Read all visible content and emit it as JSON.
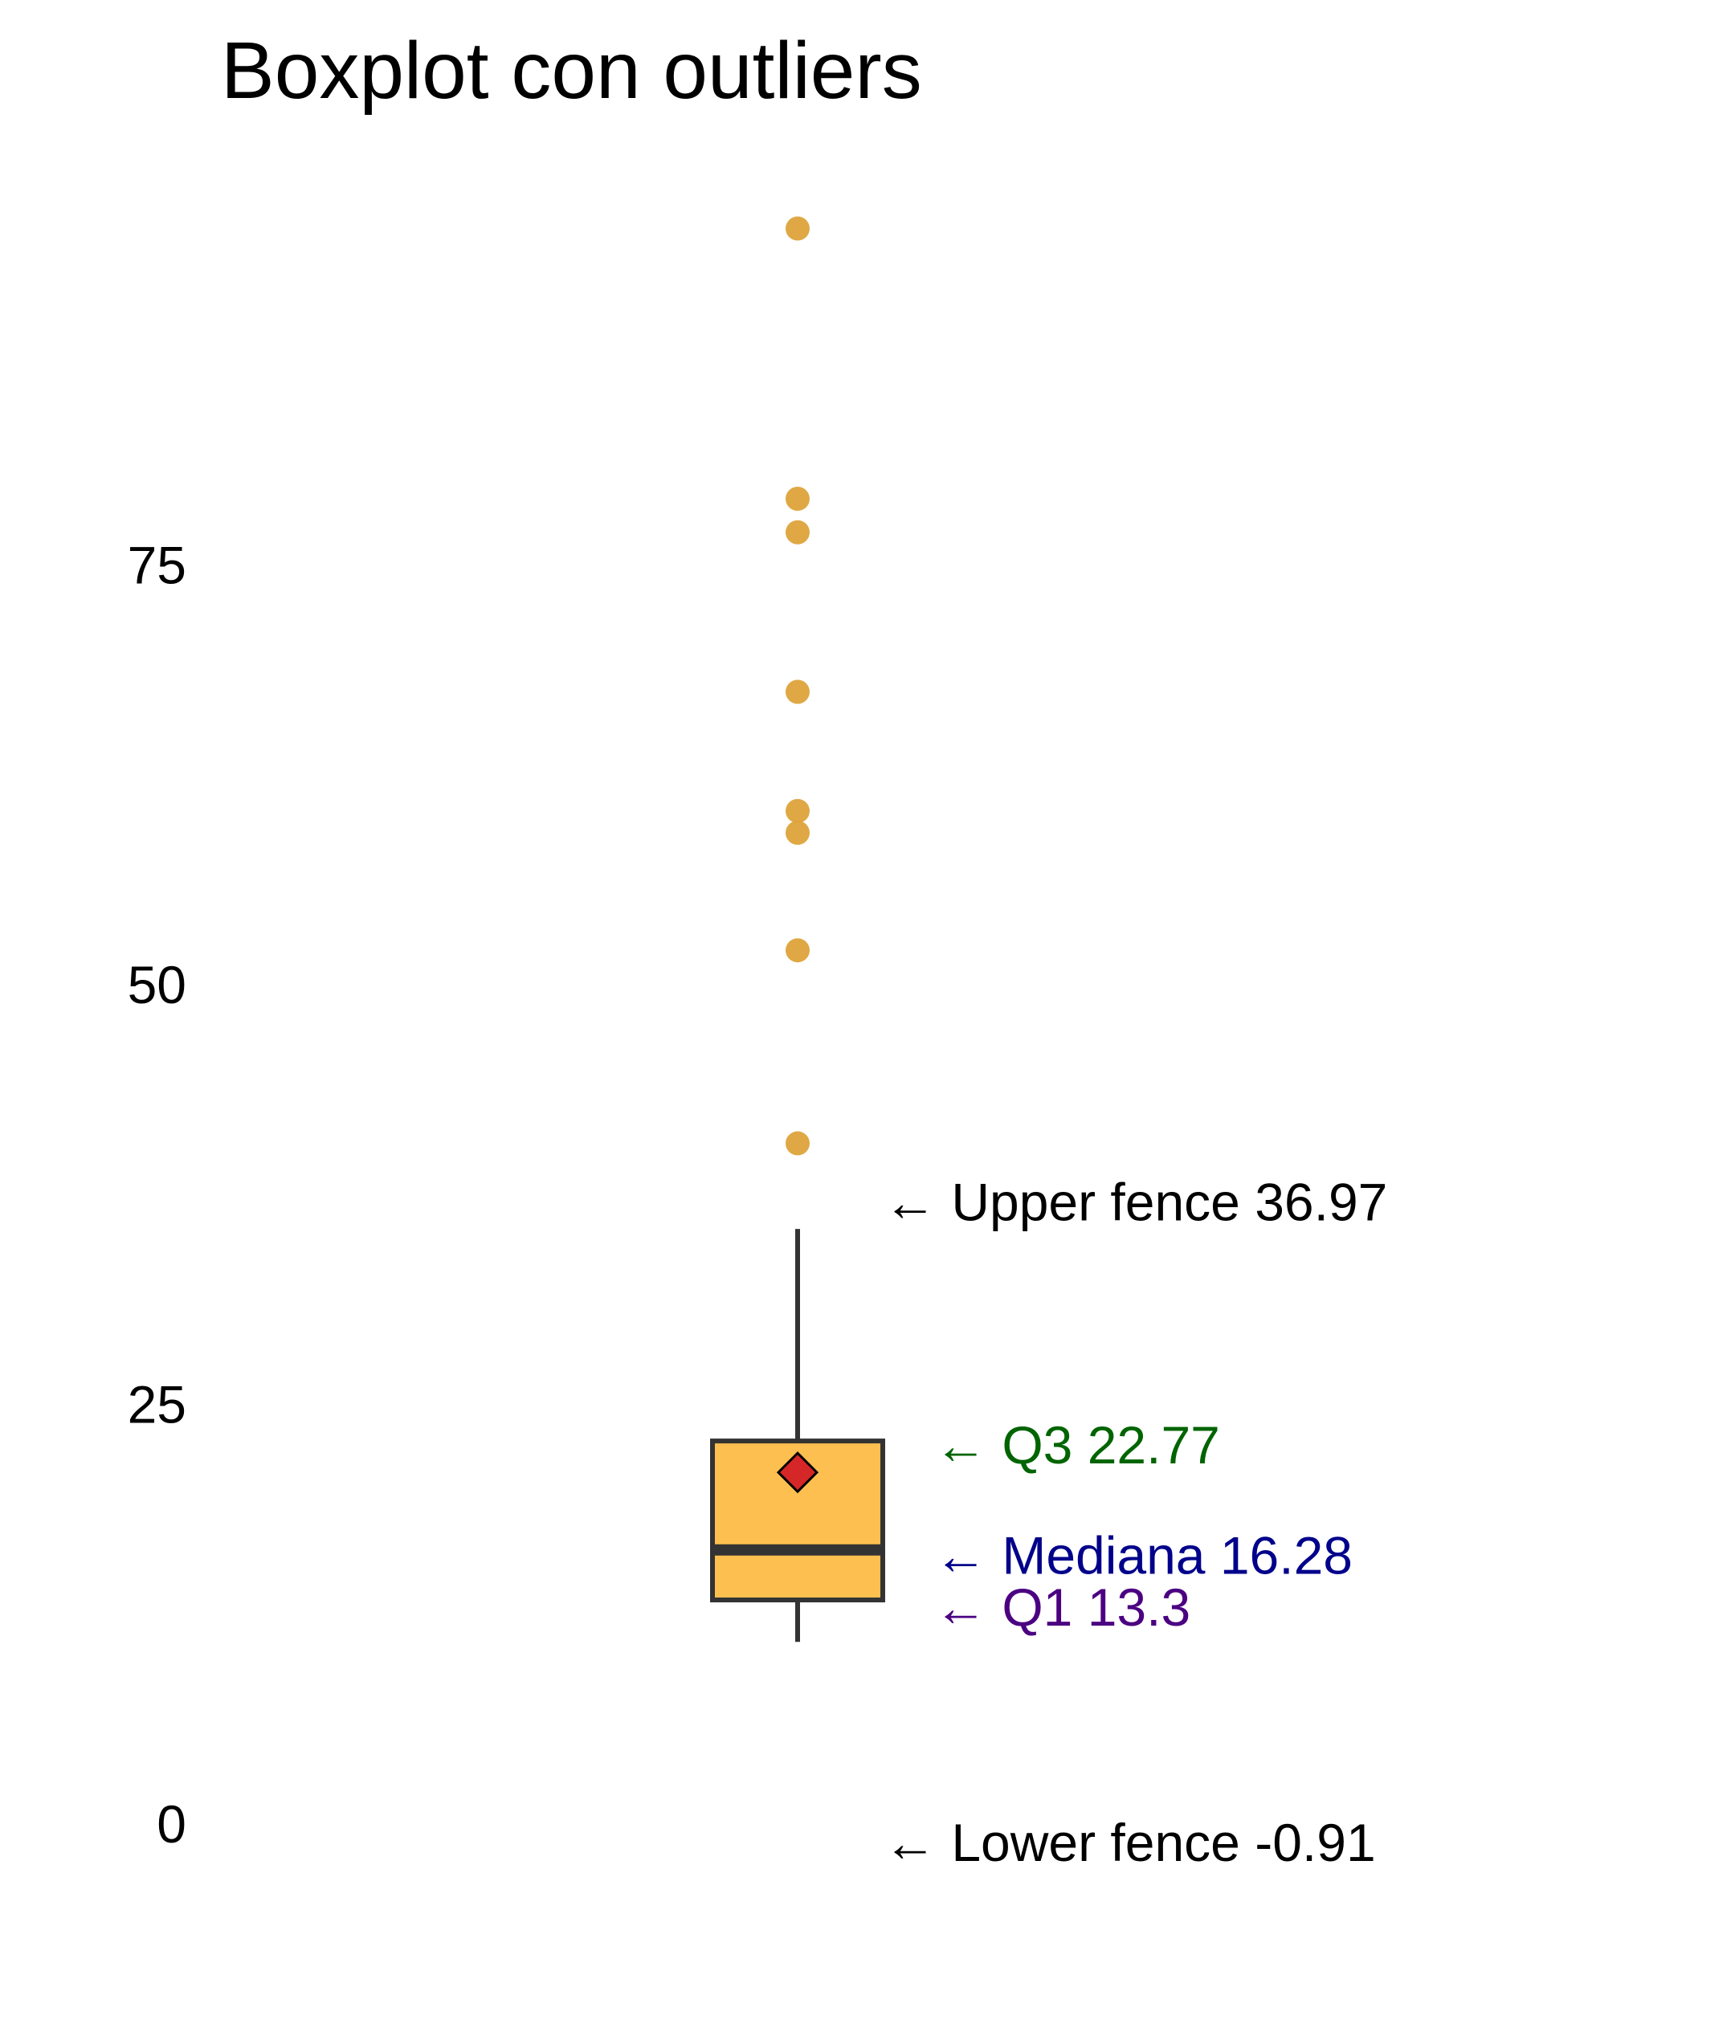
{
  "chart_data": {
    "type": "boxplot",
    "title": "Boxplot con outliers",
    "xlabel": "",
    "ylabel": "",
    "ylim": [
      -6.5,
      94
    ],
    "yticks": [
      0,
      25,
      50,
      75
    ],
    "grid": false,
    "box": {
      "q1": 13.3,
      "median": 16.28,
      "q3": 22.77,
      "mean": 20.9,
      "whisker_low": 10.8,
      "whisker_high": 35.4
    },
    "outliers": [
      40.5,
      52,
      59,
      60.3,
      67.4,
      76.9,
      78.9,
      95
    ],
    "annotations": [
      {
        "key": "upper_fence",
        "text": "← Upper fence 36.97",
        "value": 36.97,
        "color": "#000000"
      },
      {
        "key": "q3",
        "text": "← Q3 22.77",
        "value": 22.77,
        "color": "#006400"
      },
      {
        "key": "median",
        "text": "← Mediana 16.28",
        "value": 16.28,
        "color": "#00008B"
      },
      {
        "key": "q1",
        "text": "← Q1 13.3",
        "value": 13.3,
        "color": "#4B0082"
      },
      {
        "key": "lower_fence",
        "text": "← Lower fence -0.91",
        "value": -0.91,
        "color": "#000000"
      }
    ],
    "colors": {
      "box_fill": "#FDBF4F",
      "box_stroke": "#333333",
      "outlier": "#DDA33A",
      "mean_marker": "#D62728"
    }
  }
}
